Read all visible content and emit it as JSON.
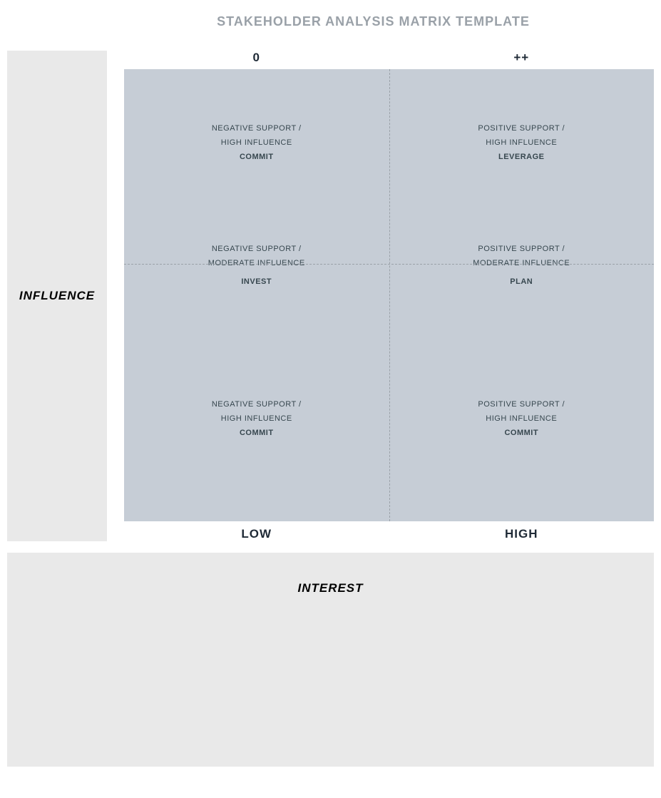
{
  "title": "STAKEHOLDER ANALYSIS MATRIX TEMPLATE",
  "title_color": "#9aa1a8",
  "title_fontsize": 18,
  "axes": {
    "y_label": "INFLUENCE",
    "x_label": "INTEREST",
    "top_left_header": "0",
    "top_right_header": "++",
    "bottom_left_label": "LOW",
    "bottom_right_label": "HIGH"
  },
  "colors": {
    "side_panel_bg": "#e9e9e9",
    "matrix_bg": "#c6cdd6",
    "grid_line": "#9aa1a8",
    "cell_text": "#37474f",
    "header_text": "#1f2a36",
    "page_bg": "#ffffff"
  },
  "matrix": {
    "rows": 3,
    "cols": 2,
    "divider_positions_pct": [
      33.33,
      66.66
    ],
    "cells": [
      {
        "r": 0,
        "c": 0,
        "line1": "NEGATIVE SUPPORT /",
        "line2": "HIGH INFLUENCE",
        "action": "COMMIT"
      },
      {
        "r": 0,
        "c": 1,
        "line1": "POSITIVE SUPPORT /",
        "line2": "HIGH INFLUENCE",
        "action": "LEVERAGE"
      },
      {
        "r": 1,
        "c": 0,
        "line1": "NEGATIVE SUPPORT /",
        "line2": "MODERATE INFLUENCE",
        "action": "INVEST"
      },
      {
        "r": 1,
        "c": 1,
        "line1": "POSITIVE SUPPORT /",
        "line2": "MODERATE INFLUENCE",
        "action": "PLAN"
      },
      {
        "r": 2,
        "c": 0,
        "line1": "NEGATIVE SUPPORT /",
        "line2": "HIGH INFLUENCE",
        "action": "COMMIT"
      },
      {
        "r": 2,
        "c": 1,
        "line1": "POSITIVE SUPPORT /",
        "line2": "HIGH INFLUENCE",
        "action": "COMMIT"
      }
    ]
  }
}
